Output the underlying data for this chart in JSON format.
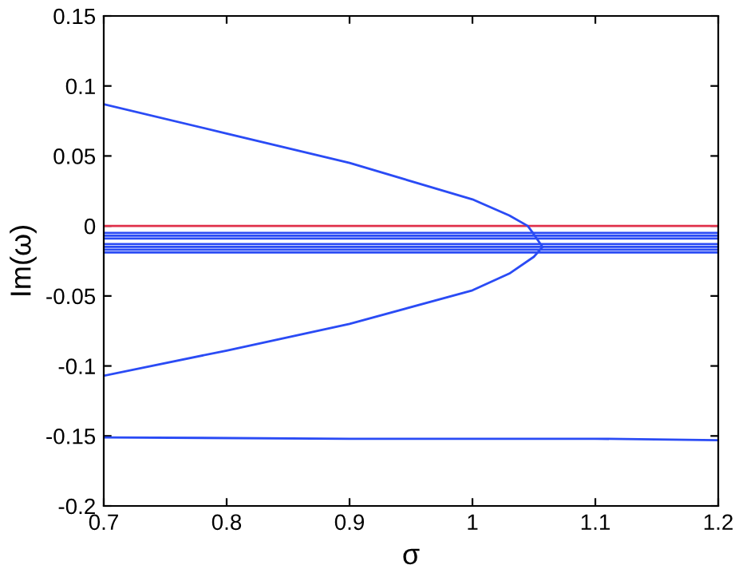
{
  "chart_data": {
    "type": "line",
    "xlabel": "σ",
    "ylabel": "Im(ω)",
    "xlim": [
      0.7,
      1.2
    ],
    "ylim": [
      -0.2,
      0.15
    ],
    "xticks": [
      0.7,
      0.8,
      0.9,
      1,
      1.1,
      1.2
    ],
    "yticks": [
      -0.2,
      -0.15,
      -0.1,
      -0.05,
      0,
      0.05,
      0.1,
      0.15
    ],
    "grid": false,
    "marker": "none",
    "line_style": "solid",
    "series": [
      {
        "color": "#e0304a",
        "x": [
          0.7,
          1.2
        ],
        "values": [
          0,
          0
        ]
      },
      {
        "color": "#2a4bf5",
        "x": [
          0.7,
          0.8,
          0.9,
          1.0,
          1.03,
          1.045,
          1.05,
          1.057
        ],
        "values": [
          0.087,
          0.066,
          0.045,
          0.019,
          0.0075,
          0,
          -0.006,
          -0.015
        ]
      },
      {
        "color": "#2a4bf5",
        "x": [
          0.7,
          0.8,
          0.9,
          1.0,
          1.03,
          1.05,
          1.057
        ],
        "values": [
          -0.107,
          -0.089,
          -0.07,
          -0.046,
          -0.034,
          -0.022,
          -0.015
        ]
      },
      {
        "color": "#2a4bf5",
        "x": [
          0.7,
          1.2
        ],
        "values": [
          -0.005,
          -0.005
        ]
      },
      {
        "color": "#2a4bf5",
        "x": [
          0.7,
          1.2
        ],
        "values": [
          -0.007,
          -0.007
        ]
      },
      {
        "color": "#2a4bf5",
        "x": [
          0.7,
          1.2
        ],
        "values": [
          -0.009,
          -0.009
        ]
      },
      {
        "color": "#2a4bf5",
        "x": [
          0.7,
          1.2
        ],
        "values": [
          -0.013,
          -0.013
        ]
      },
      {
        "color": "#2a4bf5",
        "x": [
          0.7,
          1.2
        ],
        "values": [
          -0.015,
          -0.015
        ]
      },
      {
        "color": "#2a4bf5",
        "x": [
          0.7,
          1.2
        ],
        "values": [
          -0.017,
          -0.017
        ]
      },
      {
        "color": "#2a4bf5",
        "x": [
          0.7,
          1.2
        ],
        "values": [
          -0.019,
          -0.019
        ]
      },
      {
        "color": "#2a4bf5",
        "x": [
          0.7,
          0.9,
          1.1,
          1.2
        ],
        "values": [
          -0.151,
          -0.152,
          -0.152,
          -0.153
        ]
      }
    ]
  }
}
